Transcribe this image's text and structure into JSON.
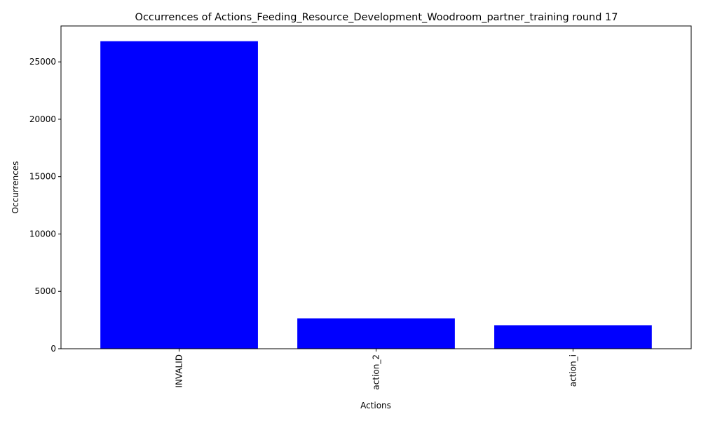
{
  "chart_data": {
    "type": "bar",
    "title": "Occurrences of Actions_Feeding_Resource_Development_Woodroom_partner_training round 17",
    "xlabel": "Actions",
    "ylabel": "Occurrences",
    "categories": [
      "INVALID",
      "action_2",
      "action_i"
    ],
    "values": [
      26800,
      2650,
      2050
    ],
    "ylim": [
      0,
      28130
    ],
    "yticks": [
      0,
      5000,
      10000,
      15000,
      20000,
      25000
    ],
    "bar_color": "#0000ff",
    "grid": false,
    "x_tick_rotation": "vertical"
  }
}
